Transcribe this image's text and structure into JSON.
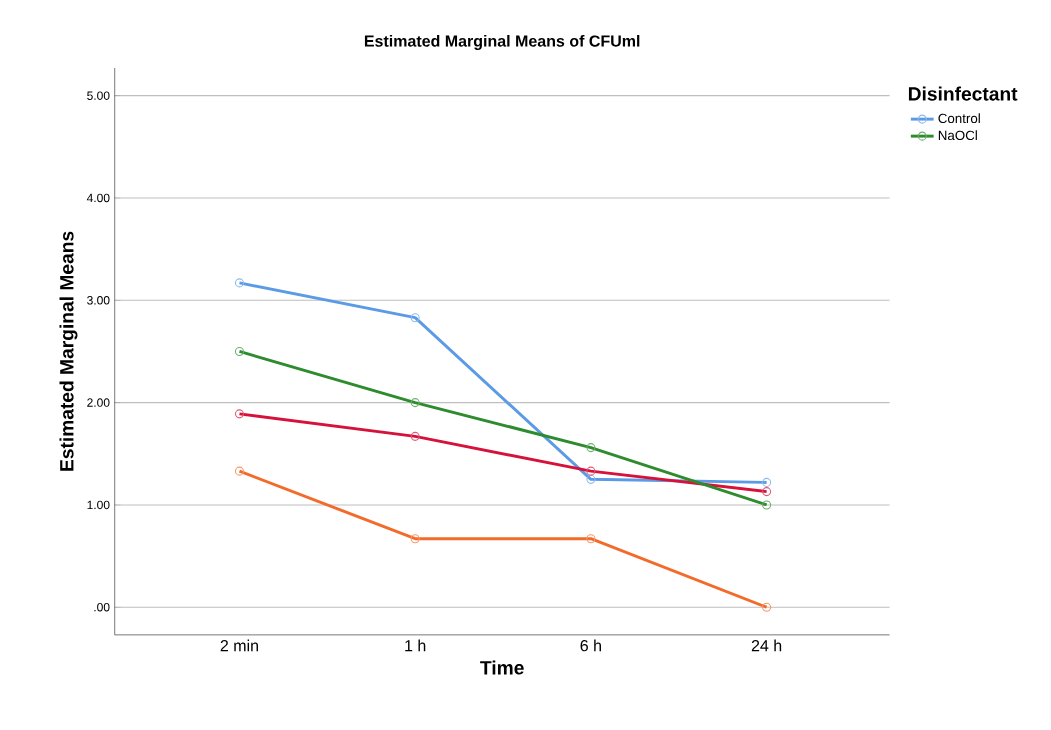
{
  "chart_data": {
    "type": "line",
    "title": "Estimated Marginal Means of CFUml",
    "xlabel": "Time",
    "ylabel": "Estimated Marginal Means",
    "legend_title": "Disinfectant",
    "categories": [
      "2 min",
      "1 h",
      "6 h",
      "24 h"
    ],
    "series": [
      {
        "name": "Control",
        "color": "#5b9be6",
        "values": [
          3.17,
          2.83,
          1.25,
          1.22
        ]
      },
      {
        "color": "#d6113a",
        "values": [
          1.89,
          1.67,
          1.33,
          1.13
        ]
      },
      {
        "name": "NaOCl",
        "color": "#2e8b2e",
        "values": [
          2.5,
          2.0,
          1.56,
          1.0
        ]
      },
      {
        "color": "#f26b2a",
        "values": [
          1.33,
          0.67,
          0.67,
          0.0
        ]
      }
    ],
    "ylim": [
      -0.27,
      5.27
    ],
    "yticks": [
      {
        "value": 0,
        "label": ".00"
      },
      {
        "value": 1,
        "label": "1.00"
      },
      {
        "value": 2,
        "label": "2.00"
      },
      {
        "value": 3,
        "label": "3.00"
      },
      {
        "value": 4,
        "label": "4.00"
      },
      {
        "value": 5,
        "label": "5.00"
      }
    ],
    "grid": "y",
    "legend": "top right",
    "marker": "circle",
    "line_style": "solid"
  }
}
